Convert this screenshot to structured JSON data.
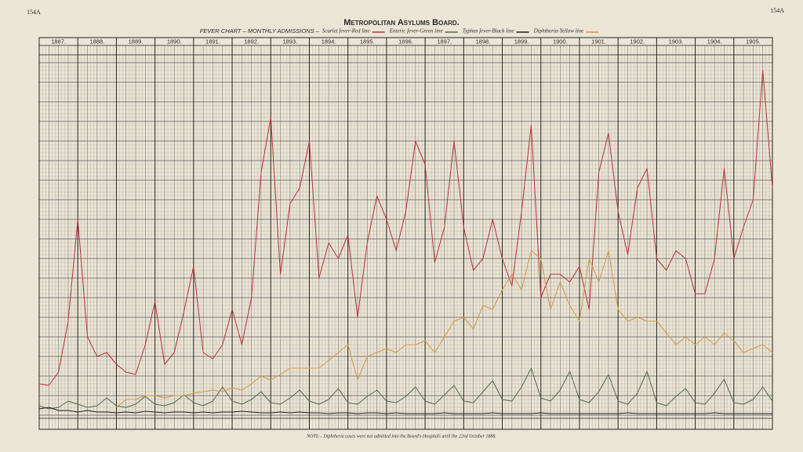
{
  "page_marks": [
    "154A",
    "154A"
  ],
  "note": "NOTE – Diphtheria cases were not admitted into the Board's Hospitals until the 22nd October 1888.",
  "chart_data": {
    "type": "line",
    "title": "Metropolitan Asylums Board.",
    "subtitle": "FEVER CHART – MONTHLY ADMISSIONS –",
    "xlim": [
      1887,
      1906
    ],
    "xticks": [
      {
        "value": 1887,
        "label": "1887."
      },
      {
        "value": 1888,
        "label": "1888."
      },
      {
        "value": 1889,
        "label": "1889."
      },
      {
        "value": 1890,
        "label": "1890."
      },
      {
        "value": 1891,
        "label": "1891."
      },
      {
        "value": 1892,
        "label": "1892."
      },
      {
        "value": 1893,
        "label": "1893."
      },
      {
        "value": 1894,
        "label": "1894."
      },
      {
        "value": 1895,
        "label": "1895."
      },
      {
        "value": 1896,
        "label": "1896."
      },
      {
        "value": 1897,
        "label": "1897."
      },
      {
        "value": 1898,
        "label": "1898."
      },
      {
        "value": 1899,
        "label": "1899."
      },
      {
        "value": 1900,
        "label": "1900."
      },
      {
        "value": 1901,
        "label": "1901."
      },
      {
        "value": 1902,
        "label": "1902."
      },
      {
        "value": 1903,
        "label": "1903."
      },
      {
        "value": 1904,
        "label": "1904."
      },
      {
        "value": 1905,
        "label": "1905."
      }
    ],
    "ylim": [
      0,
      2300
    ],
    "grid": true,
    "x": [
      1887,
      1887.25,
      1887.5,
      1887.75,
      1888,
      1888.25,
      1888.5,
      1888.75,
      1889,
      1889.25,
      1889.5,
      1889.75,
      1890,
      1890.25,
      1890.5,
      1890.75,
      1891,
      1891.25,
      1891.5,
      1891.75,
      1892,
      1892.25,
      1892.5,
      1892.75,
      1893,
      1893.25,
      1893.5,
      1893.75,
      1894,
      1894.25,
      1894.5,
      1894.75,
      1895,
      1895.25,
      1895.5,
      1895.75,
      1896,
      1896.25,
      1896.5,
      1896.75,
      1897,
      1897.25,
      1897.5,
      1897.75,
      1898,
      1898.25,
      1898.5,
      1898.75,
      1899,
      1899.25,
      1899.5,
      1899.75,
      1900,
      1900.25,
      1900.5,
      1900.75,
      1901,
      1901.25,
      1901.5,
      1901.75,
      1902,
      1902.25,
      1902.5,
      1902.75,
      1903,
      1903.25,
      1903.5,
      1903.75,
      1904,
      1904.25,
      1904.5,
      1904.75,
      1905,
      1905.25,
      1905.5,
      1905.75,
      1906
    ],
    "series": [
      {
        "name": "Scarlet fever-Red line",
        "color": "#b8323a",
        "values": [
          200,
          190,
          275,
          600,
          1250,
          500,
          375,
          400,
          325,
          275,
          260,
          450,
          725,
          325,
          400,
          660,
          950,
          400,
          360,
          450,
          675,
          450,
          750,
          1550,
          1900,
          900,
          1350,
          1450,
          1750,
          875,
          1100,
          1000,
          1150,
          625,
          1100,
          1400,
          1250,
          1050,
          1300,
          1750,
          1600,
          975,
          1200,
          1750,
          1200,
          925,
          1000,
          1250,
          1000,
          825,
          1300,
          1850,
          750,
          900,
          900,
          850,
          950,
          675,
          1550,
          1800,
          1300,
          1025,
          1450,
          1575,
          1000,
          925,
          1050,
          1000,
          775,
          775,
          1000,
          1575,
          1000,
          1200,
          1375,
          2200,
          1450
        ]
      },
      {
        "name": "Enteric fever-Green line",
        "color": "#4f6b4a",
        "values": [
          60,
          40,
          50,
          90,
          70,
          50,
          60,
          110,
          60,
          50,
          70,
          120,
          70,
          60,
          80,
          130,
          80,
          60,
          90,
          180,
          90,
          70,
          100,
          150,
          80,
          70,
          110,
          160,
          90,
          70,
          100,
          170,
          80,
          70,
          120,
          160,
          90,
          80,
          120,
          180,
          90,
          70,
          130,
          190,
          90,
          80,
          150,
          220,
          100,
          90,
          180,
          300,
          110,
          90,
          160,
          280,
          100,
          80,
          150,
          260,
          90,
          70,
          140,
          280,
          80,
          60,
          120,
          170,
          80,
          70,
          140,
          230,
          80,
          70,
          100,
          180,
          90
        ]
      },
      {
        "name": "Typhus fever-Black line",
        "color": "#222222",
        "values": [
          40,
          50,
          30,
          30,
          20,
          30,
          20,
          20,
          15,
          20,
          15,
          25,
          20,
          15,
          20,
          20,
          15,
          20,
          15,
          20,
          20,
          25,
          20,
          15,
          15,
          20,
          15,
          20,
          15,
          15,
          10,
          15,
          15,
          10,
          15,
          15,
          10,
          15,
          10,
          10,
          10,
          10,
          15,
          10,
          10,
          10,
          10,
          15,
          10,
          10,
          10,
          10,
          15,
          10,
          10,
          10,
          10,
          10,
          10,
          10,
          10,
          15,
          10,
          10,
          10,
          10,
          10,
          10,
          10,
          10,
          15,
          10,
          10,
          10,
          10,
          10,
          10
        ]
      },
      {
        "name": "Diphtheria-Yellow line",
        "color": "#d39a4a",
        "values": [
          null,
          null,
          null,
          null,
          null,
          null,
          null,
          null,
          50,
          100,
          100,
          125,
          125,
          110,
          125,
          125,
          140,
          150,
          160,
          150,
          175,
          160,
          200,
          250,
          225,
          260,
          300,
          300,
          300,
          300,
          350,
          400,
          450,
          225,
          375,
          400,
          425,
          400,
          450,
          450,
          475,
          400,
          500,
          600,
          625,
          550,
          700,
          675,
          800,
          900,
          800,
          1050,
          1000,
          675,
          850,
          700,
          600,
          1000,
          850,
          1050,
          675,
          600,
          625,
          600,
          600,
          525,
          450,
          500,
          450,
          500,
          450,
          525,
          475,
          400,
          425,
          450,
          400
        ]
      }
    ]
  }
}
